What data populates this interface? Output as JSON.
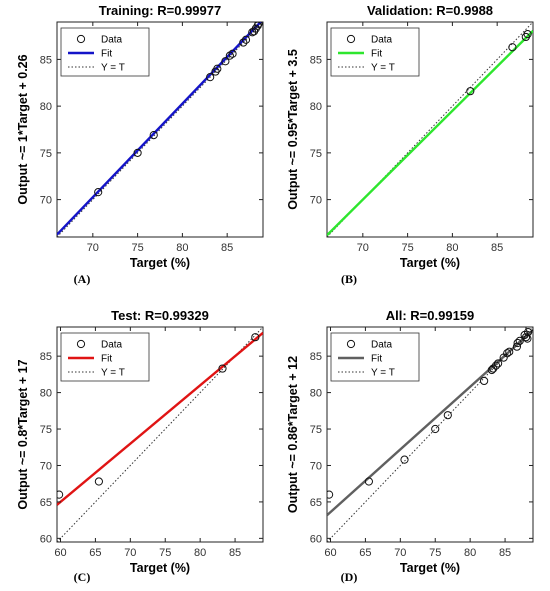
{
  "chart_data": [
    {
      "id": "A",
      "type": "scatter",
      "title": "Training: R=0.99977",
      "xlabel": "Target (%)",
      "ylabel": "Output ~= 1*Target + 0.26",
      "caption": "(A)",
      "xlim": [
        66,
        89
      ],
      "ylim": [
        66,
        89
      ],
      "xticks": [
        70,
        75,
        80,
        85
      ],
      "yticks": [
        70,
        75,
        80,
        85
      ],
      "legend": {
        "position": "top-left",
        "entries": [
          "Data",
          "Fit",
          "Y = T"
        ]
      },
      "fit": {
        "slope": 1.0,
        "intercept": 0.26,
        "color": "#1414c8"
      },
      "points": [
        [
          70.6,
          70.8
        ],
        [
          75.0,
          75.0
        ],
        [
          76.8,
          76.9
        ],
        [
          83.1,
          83.1
        ],
        [
          83.7,
          83.7
        ],
        [
          83.9,
          84.0
        ],
        [
          84.8,
          84.8
        ],
        [
          85.3,
          85.4
        ],
        [
          85.6,
          85.6
        ],
        [
          86.8,
          86.8
        ],
        [
          87.1,
          87.1
        ],
        [
          87.8,
          87.9
        ],
        [
          88.0,
          88.0
        ],
        [
          88.2,
          88.3
        ],
        [
          88.4,
          88.6
        ],
        [
          88.5,
          88.8
        ]
      ]
    },
    {
      "id": "B",
      "type": "scatter",
      "title": "Validation: R=0.9988",
      "xlabel": "Target (%)",
      "ylabel": "Output ~= 0.95*Target + 3.5",
      "caption": "(B)",
      "xlim": [
        66,
        89
      ],
      "ylim": [
        66,
        89
      ],
      "xticks": [
        70,
        75,
        80,
        85
      ],
      "yticks": [
        70,
        75,
        80,
        85
      ],
      "legend": {
        "position": "top-left",
        "entries": [
          "Data",
          "Fit",
          "Y = T"
        ]
      },
      "fit": {
        "slope": 0.95,
        "intercept": 3.5,
        "color": "#2ee62e"
      },
      "points": [
        [
          82.0,
          81.6
        ],
        [
          86.7,
          86.3
        ],
        [
          88.2,
          87.4
        ],
        [
          88.4,
          87.7
        ]
      ]
    },
    {
      "id": "C",
      "type": "scatter",
      "title": "Test: R=0.99329",
      "xlabel": "Target (%)",
      "ylabel": "Output ~= 0.8*Target + 17",
      "caption": "(C)",
      "xlim": [
        59.5,
        89
      ],
      "ylim": [
        59.5,
        89
      ],
      "xticks": [
        60,
        65,
        70,
        75,
        80,
        85
      ],
      "yticks": [
        60,
        65,
        70,
        75,
        80,
        85
      ],
      "legend": {
        "position": "top-left",
        "entries": [
          "Data",
          "Fit",
          "Y = T"
        ]
      },
      "fit": {
        "slope": 0.8,
        "intercept": 17,
        "color": "#e01414"
      },
      "points": [
        [
          59.8,
          66.0
        ],
        [
          65.5,
          67.8
        ],
        [
          83.2,
          83.3
        ],
        [
          87.9,
          87.6
        ]
      ]
    },
    {
      "id": "D",
      "type": "scatter",
      "title": "All: R=0.99159",
      "xlabel": "Target (%)",
      "ylabel": "Output ~= 0.86*Target + 12",
      "caption": "(D)",
      "xlim": [
        59.5,
        89
      ],
      "ylim": [
        59.5,
        89
      ],
      "xticks": [
        60,
        65,
        70,
        75,
        80,
        85
      ],
      "yticks": [
        60,
        65,
        70,
        75,
        80,
        85
      ],
      "legend": {
        "position": "top-left",
        "entries": [
          "Data",
          "Fit",
          "Y = T"
        ]
      },
      "fit": {
        "slope": 0.86,
        "intercept": 12,
        "color": "#606060"
      },
      "points": [
        [
          59.8,
          66.0
        ],
        [
          65.5,
          67.8
        ],
        [
          70.6,
          70.8
        ],
        [
          75.0,
          75.0
        ],
        [
          76.8,
          76.9
        ],
        [
          82.0,
          81.6
        ],
        [
          83.1,
          83.1
        ],
        [
          83.3,
          83.3
        ],
        [
          83.7,
          83.7
        ],
        [
          84.0,
          84.0
        ],
        [
          84.8,
          84.8
        ],
        [
          85.3,
          85.4
        ],
        [
          85.6,
          85.6
        ],
        [
          86.7,
          86.3
        ],
        [
          86.8,
          86.8
        ],
        [
          87.1,
          87.1
        ],
        [
          87.8,
          87.9
        ],
        [
          88.0,
          87.6
        ],
        [
          88.2,
          87.4
        ],
        [
          88.3,
          88.3
        ],
        [
          88.5,
          88.8
        ]
      ]
    }
  ]
}
